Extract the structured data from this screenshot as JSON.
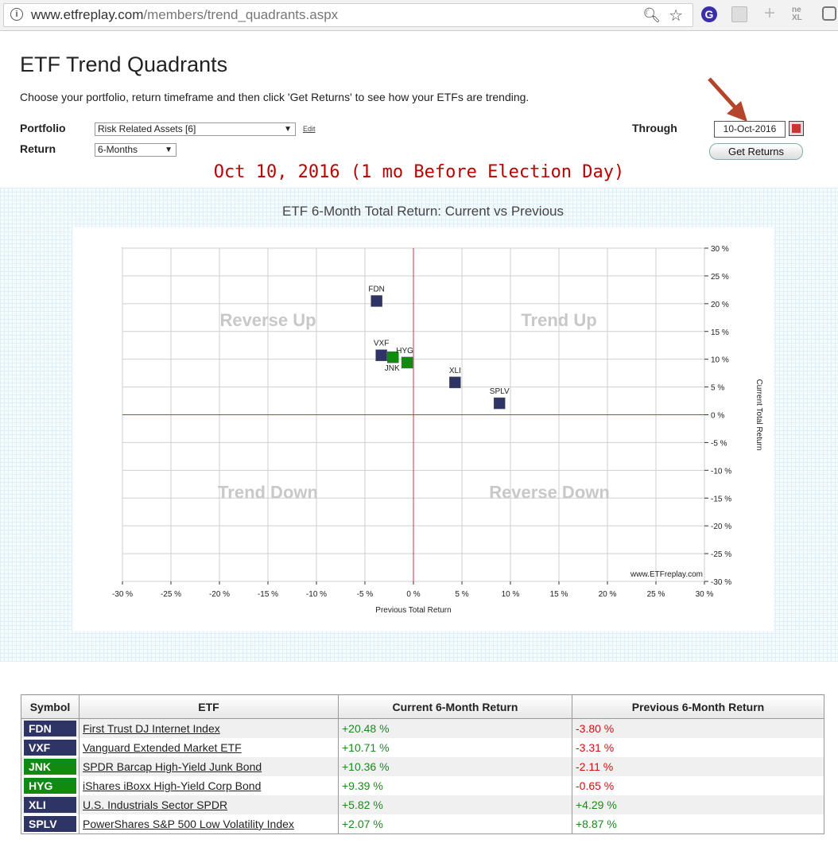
{
  "browser": {
    "url_domain": "www.etfreplay.com",
    "url_path": "/members/trend_quadrants.aspx",
    "ext_icon_label": "G",
    "ext_x_label": "ne XL"
  },
  "header": {
    "title": "ETF Trend Quadrants",
    "instructions": "Choose your portfolio, return timeframe and then click 'Get Returns' to see how your ETFs are trending."
  },
  "form": {
    "portfolio_label": "Portfolio",
    "portfolio_value": "Risk Related Assets [6]",
    "edit_label": "Edit",
    "return_label": "Return",
    "return_value": "6-Months",
    "through_label": "Through",
    "through_value": "10-Oct-2016",
    "get_returns_label": "Get Returns"
  },
  "annotation": "Oct 10, 2016 (1 mo Before Election Day)",
  "colors": {
    "etf_blue": "#2f3466",
    "etf_green": "#108a10",
    "axis_red": "#d03040",
    "annot_red": "#b00000",
    "arrow": "#b5452a"
  },
  "chart_data": {
    "type": "scatter",
    "title": "ETF 6-Month Total Return: Current vs Previous",
    "xlabel": "Previous Total Return",
    "ylabel": "Current Total Return",
    "xlim": [
      -30,
      30
    ],
    "ylim": [
      -30,
      30
    ],
    "xticks": [
      "-30 %",
      "-25 %",
      "-20 %",
      "-15 %",
      "-10 %",
      "-5 %",
      "0 %",
      "5 %",
      "10 %",
      "15 %",
      "20 %",
      "25 %",
      "30 %"
    ],
    "yticks": [
      "30 %",
      "25 %",
      "20 %",
      "15 %",
      "10 %",
      "5 %",
      "0 %",
      "-5 %",
      "-10 %",
      "-15 %",
      "-20 %",
      "-25 %",
      "-30 %"
    ],
    "quadrants": [
      "Reverse Up",
      "Trend Up",
      "Trend Down",
      "Reverse Down"
    ],
    "watermark": "www.ETFreplay.com",
    "grid": true,
    "points": [
      {
        "label": "FDN",
        "x": -3.8,
        "y": 20.48,
        "color": "#2f3466"
      },
      {
        "label": "VXF",
        "x": -3.31,
        "y": 10.71,
        "color": "#2f3466"
      },
      {
        "label": "JNK",
        "x": -2.11,
        "y": 10.36,
        "color": "#108a10"
      },
      {
        "label": "HYG",
        "x": -0.65,
        "y": 9.39,
        "color": "#108a10"
      },
      {
        "label": "XLI",
        "x": 4.29,
        "y": 5.82,
        "color": "#2f3466"
      },
      {
        "label": "SPLV",
        "x": 8.87,
        "y": 2.07,
        "color": "#2f3466"
      }
    ]
  },
  "table": {
    "headers": [
      "Symbol",
      "ETF",
      "Current 6-Month Return",
      "Previous 6-Month Return"
    ],
    "rows": [
      {
        "symbol": "FDN",
        "name": "First Trust DJ Internet Index",
        "current": "+20.48 %",
        "previous": "-3.80 %",
        "color": "#2f3466"
      },
      {
        "symbol": "VXF",
        "name": "Vanguard Extended Market ETF",
        "current": "+10.71 %",
        "previous": "-3.31 %",
        "color": "#2f3466"
      },
      {
        "symbol": "JNK",
        "name": "SPDR Barcap High-Yield Junk Bond",
        "current": "+10.36 %",
        "previous": "-2.11 %",
        "color": "#108a10"
      },
      {
        "symbol": "HYG",
        "name": "iShares iBoxx High-Yield Corp Bond",
        "current": "+9.39 %",
        "previous": "-0.65 %",
        "color": "#108a10"
      },
      {
        "symbol": "XLI",
        "name": "U.S. Industrials Sector SPDR",
        "current": "+5.82 %",
        "previous": "+4.29 %",
        "color": "#2f3466"
      },
      {
        "symbol": "SPLV",
        "name": "PowerShares S&P 500 Low Volatility Index",
        "current": "+2.07 %",
        "previous": "+8.87 %",
        "color": "#2f3466"
      }
    ]
  }
}
